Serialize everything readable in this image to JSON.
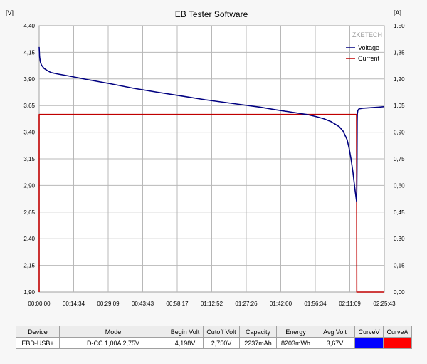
{
  "window": {
    "title": "EB Tester Software"
  },
  "chart_data": {
    "type": "line",
    "title": "EB Tester Software",
    "watermark": "ZKETECH",
    "y_left_unit": "[V]",
    "y_right_unit": "[A]",
    "y_left_ticks": [
      "4,40",
      "4,15",
      "3,90",
      "3,65",
      "3,40",
      "3,15",
      "2,90",
      "2,65",
      "2,40",
      "2,15",
      "1,90"
    ],
    "y_right_ticks": [
      "1,50",
      "1,35",
      "1,20",
      "1,05",
      "0,90",
      "0,75",
      "0,60",
      "0,45",
      "0,30",
      "0,15",
      "0,00"
    ],
    "x_ticks": [
      "00:00:00",
      "00:14:34",
      "00:29:09",
      "00:43:43",
      "00:58:17",
      "01:12:52",
      "01:27:26",
      "01:42:00",
      "01:56:34",
      "02:11:09",
      "02:25:43"
    ],
    "ylim_left": [
      1.9,
      4.4
    ],
    "ylim_right": [
      0.0,
      1.5
    ],
    "xlim_seconds": [
      0,
      8743
    ],
    "grid": true,
    "legend_position": "top-right",
    "series": [
      {
        "name": "Voltage",
        "axis": "left",
        "color": "#000080",
        "x_seconds": [
          0,
          10,
          30,
          60,
          120,
          200,
          300,
          500,
          800,
          1200,
          1800,
          2400,
          3000,
          3600,
          4200,
          4800,
          5200,
          5600,
          6000,
          6400,
          6800,
          7000,
          7200,
          7400,
          7600,
          7700,
          7800,
          7850,
          7900,
          7950,
          8000,
          8030,
          8040,
          8045,
          8050,
          8056,
          8060,
          8070,
          8090,
          8120,
          8200,
          8400,
          8600,
          8743
        ],
        "values": [
          4.2,
          4.11,
          4.06,
          4.03,
          4.0,
          3.98,
          3.96,
          3.945,
          3.925,
          3.895,
          3.855,
          3.812,
          3.775,
          3.74,
          3.705,
          3.675,
          3.655,
          3.635,
          3.61,
          3.588,
          3.565,
          3.548,
          3.528,
          3.498,
          3.452,
          3.41,
          3.33,
          3.25,
          3.15,
          3.02,
          2.86,
          2.78,
          2.75,
          2.85,
          3.05,
          3.5,
          3.57,
          3.6,
          3.615,
          3.62,
          3.625,
          3.63,
          3.635,
          3.64
        ]
      },
      {
        "name": "Current",
        "axis": "right",
        "color": "#c00000",
        "x_seconds": [
          0,
          0,
          30,
          8040,
          8045,
          8060,
          8743
        ],
        "values": [
          0.0,
          1.0,
          1.0,
          1.0,
          0.0,
          0.0,
          0.0
        ]
      }
    ]
  },
  "status_bar": {
    "headers": {
      "device": "Device",
      "mode": "Mode",
      "begin_volt": "Begin Volt",
      "cutoff_volt": "Cutoff Volt",
      "capacity": "Capacity",
      "energy": "Energy",
      "avg_volt": "Avg Volt",
      "curve_v": "CurveV",
      "curve_a": "CurveA"
    },
    "values": {
      "device": "EBD-USB+",
      "mode": "D-CC 1,00A 2,75V",
      "begin_volt": "4,198V",
      "cutoff_volt": "2,750V",
      "capacity": "2237mAh",
      "energy": "8203mWh",
      "avg_volt": "3,67V"
    },
    "curve_v_color": "#0000ff",
    "curve_a_color": "#ff0000"
  }
}
